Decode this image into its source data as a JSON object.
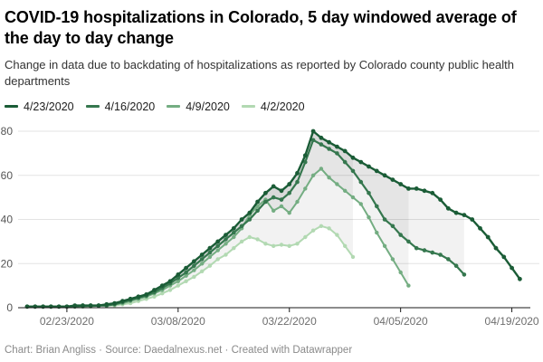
{
  "header": {
    "title": "COVID-19 hospitalizations in Colorado, 5 day windowed average of the day to day change",
    "description": "Change in data due to backdating of hospitalizations as reported by Colorado county public health departments"
  },
  "footer": {
    "credit": "Chart: Brian Angliss · Source: Daedalnexus.net · Created with Datawrapper"
  },
  "colors": {
    "title_text": "#000000",
    "body_text": "#333333",
    "axis_text": "#6e6e6e",
    "gridline": "#e3e3e3",
    "baseline": "#1a1a1a",
    "band_fill": "rgba(0,0,0,0.05)",
    "footer_text": "#8a8a8a"
  },
  "chart_data": {
    "type": "line",
    "title": "COVID-19 hospitalizations in Colorado, 5 day windowed average of the day to day change",
    "xlabel": "",
    "ylabel": "",
    "grid": true,
    "point_markers": true,
    "legend_position": "top",
    "ylim": [
      0,
      82
    ],
    "y_ticks": [
      0,
      20,
      40,
      60,
      80
    ],
    "x_tick_labels": [
      "02/23/2020",
      "03/08/2020",
      "03/22/2020",
      "04/05/2020",
      "04/19/2020"
    ],
    "x": [
      "02/18/2020",
      "02/19/2020",
      "02/20/2020",
      "02/21/2020",
      "02/22/2020",
      "02/23/2020",
      "02/24/2020",
      "02/25/2020",
      "02/26/2020",
      "02/27/2020",
      "02/28/2020",
      "02/29/2020",
      "03/01/2020",
      "03/02/2020",
      "03/03/2020",
      "03/04/2020",
      "03/05/2020",
      "03/06/2020",
      "03/07/2020",
      "03/08/2020",
      "03/09/2020",
      "03/10/2020",
      "03/11/2020",
      "03/12/2020",
      "03/13/2020",
      "03/14/2020",
      "03/15/2020",
      "03/16/2020",
      "03/17/2020",
      "03/18/2020",
      "03/19/2020",
      "03/20/2020",
      "03/21/2020",
      "03/22/2020",
      "03/23/2020",
      "03/24/2020",
      "03/25/2020",
      "03/26/2020",
      "03/27/2020",
      "03/28/2020",
      "03/29/2020",
      "03/30/2020",
      "03/31/2020",
      "04/01/2020",
      "04/02/2020",
      "04/03/2020",
      "04/04/2020",
      "04/05/2020",
      "04/06/2020",
      "04/07/2020",
      "04/08/2020",
      "04/09/2020",
      "04/10/2020",
      "04/11/2020",
      "04/12/2020",
      "04/13/2020",
      "04/14/2020",
      "04/15/2020",
      "04/16/2020",
      "04/17/2020",
      "04/18/2020",
      "04/19/2020",
      "04/20/2020"
    ],
    "series": [
      {
        "name": "4/23/2020",
        "color": "#1a5c36",
        "values": [
          0.5,
          0.5,
          0.5,
          0.5,
          0.5,
          0.5,
          1,
          1,
          1,
          1,
          1.5,
          2,
          3,
          4,
          5,
          6,
          8,
          10,
          12,
          15,
          18,
          21,
          24,
          27,
          30,
          33,
          36,
          40,
          43,
          48,
          52,
          55,
          53,
          56,
          61,
          69,
          80,
          77,
          75,
          73,
          71,
          68,
          66,
          64,
          62,
          60,
          58,
          56,
          54,
          54,
          53,
          52,
          49,
          45,
          43,
          42,
          40,
          36,
          32,
          27,
          23,
          18,
          13
        ]
      },
      {
        "name": "4/16/2020",
        "color": "#35774e",
        "values": [
          0.5,
          0.5,
          0.5,
          0.5,
          0.5,
          0.5,
          0.5,
          1,
          1,
          1,
          1,
          1.5,
          2.5,
          3.5,
          4.5,
          5.5,
          7,
          9,
          11,
          13.5,
          16,
          19,
          22,
          25,
          28,
          31,
          34,
          37,
          40,
          44,
          48,
          50,
          49,
          52,
          57,
          66,
          76,
          74,
          72,
          70,
          66,
          62,
          57,
          52,
          46,
          40,
          37,
          33,
          30,
          27,
          26,
          25,
          24,
          22,
          19,
          15
        ]
      },
      {
        "name": "4/9/2020",
        "color": "#74ad82",
        "values": [
          0.5,
          0.5,
          0.5,
          0.5,
          0.5,
          0.5,
          0.5,
          0.5,
          1,
          1,
          1,
          1.5,
          2,
          3,
          4,
          5,
          6.5,
          8,
          10,
          12,
          14.5,
          17,
          20,
          23,
          26,
          29,
          32,
          36,
          42,
          46,
          49,
          44,
          46,
          43,
          48,
          54,
          60,
          63,
          59,
          56,
          53,
          50,
          47,
          41,
          34,
          28,
          22,
          16,
          10
        ]
      },
      {
        "name": "4/2/2020",
        "color": "#b2d9b2",
        "values": [
          0.5,
          0.5,
          0.5,
          0.5,
          0.5,
          0.5,
          0.5,
          0.5,
          0.5,
          1,
          1,
          1,
          1.5,
          2,
          3,
          4,
          5,
          6.5,
          8,
          10,
          12,
          14,
          16.5,
          19,
          22,
          24,
          27,
          30,
          32,
          31,
          29,
          28,
          28.5,
          28,
          29,
          32,
          35,
          37,
          36,
          33,
          28,
          23
        ]
      }
    ]
  }
}
